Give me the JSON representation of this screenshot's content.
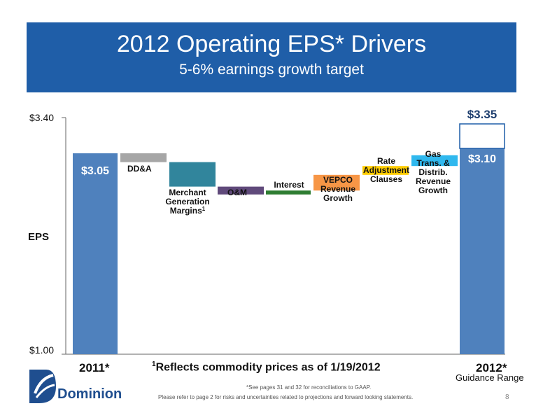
{
  "header": {
    "title": "2012 Operating EPS* Drivers",
    "subtitle": "5-6% earnings growth target"
  },
  "axis": {
    "y_label": "EPS",
    "y_top_tick": "$3.40",
    "y_bottom_tick": "$1.00"
  },
  "x_categories": {
    "start": "2011*",
    "end": "2012*",
    "end_sub": "Guidance Range"
  },
  "footnotes": {
    "commodity_sup": "1",
    "commodity": "Reflects commodity prices as of 1/19/2012",
    "gaap": "*See pages 31 and 32 for reconciliations to GAAP.",
    "risk": "Please refer to page 2 for risks and uncertainties related to projections and forward looking statements."
  },
  "page_number": "8",
  "logo": {
    "name": "Dominion",
    "icon": "dominion-swirl-logo-icon"
  },
  "colors": {
    "banner": "#1f5ea8",
    "total_bar": "#4f81bd",
    "dda": "#a6a6a6",
    "merchant": "#31859c",
    "om": "#604a7b",
    "interest": "#2e7d32",
    "vepco": "#f79646",
    "rate": "#ffcc00",
    "gas": "#2fb8ee"
  },
  "chart_data": {
    "type": "bar",
    "subtype": "waterfall",
    "title": "2012 Operating EPS* Drivers",
    "subtitle": "5-6% earnings growth target",
    "ylabel": "EPS",
    "ylim": [
      1.0,
      3.4
    ],
    "yticks": [
      "$1.00",
      "$3.40"
    ],
    "start": {
      "category": "2011*",
      "value": 3.05,
      "label": "$3.05"
    },
    "drivers": [
      {
        "key": "dda",
        "label": "DD&A",
        "from": 3.05,
        "to": 2.96
      },
      {
        "key": "merchant",
        "label": "Merchant Generation Margins",
        "label_lines": [
          "Merchant",
          "Generation",
          "Margins"
        ],
        "sup": "1",
        "from": 2.96,
        "to": 2.71
      },
      {
        "key": "om",
        "label": "O&M",
        "label_lines": [
          "O&M"
        ],
        "from": 2.71,
        "to": 2.63
      },
      {
        "key": "interest",
        "label": "Interest",
        "label_lines": [
          "Interest"
        ],
        "from": 2.63,
        "to": 2.67
      },
      {
        "key": "vepco",
        "label": "VEPCO Revenue Growth",
        "label_lines": [
          "VEPCO",
          "Revenue",
          "Growth"
        ],
        "from": 2.67,
        "to": 2.83
      },
      {
        "key": "rate",
        "label": "Rate Adjustment Clauses",
        "label_lines": [
          "Rate",
          "Adjustment",
          "Clauses"
        ],
        "from": 2.83,
        "to": 2.92
      },
      {
        "key": "gas",
        "label": "Gas Trans. & Distrib. Revenue Growth",
        "label_lines": [
          "Gas",
          "Trans. &",
          "Distrib.",
          "Revenue",
          "Growth"
        ],
        "from": 2.92,
        "to": 3.03
      }
    ],
    "end": {
      "category": "2012*",
      "low": 3.1,
      "high": 3.35,
      "low_label": "$3.10",
      "high_label": "$3.35",
      "sublabel": "Guidance Range"
    }
  }
}
